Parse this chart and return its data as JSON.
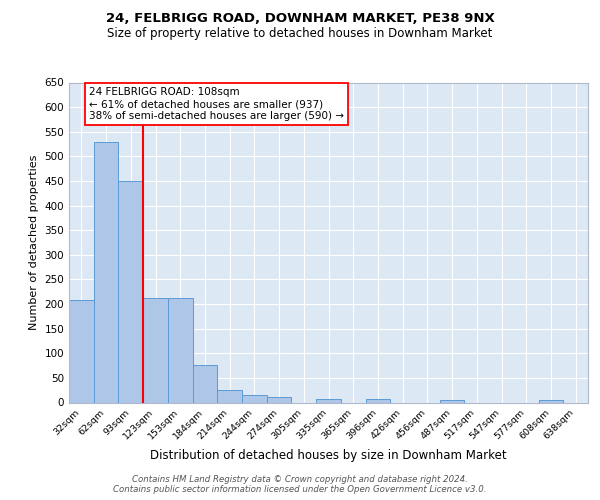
{
  "title1": "24, FELBRIGG ROAD, DOWNHAM MARKET, PE38 9NX",
  "title2": "Size of property relative to detached houses in Downham Market",
  "xlabel": "Distribution of detached houses by size in Downham Market",
  "ylabel": "Number of detached properties",
  "categories": [
    "32sqm",
    "62sqm",
    "93sqm",
    "123sqm",
    "153sqm",
    "184sqm",
    "214sqm",
    "244sqm",
    "274sqm",
    "305sqm",
    "335sqm",
    "365sqm",
    "396sqm",
    "426sqm",
    "456sqm",
    "487sqm",
    "517sqm",
    "547sqm",
    "577sqm",
    "608sqm",
    "638sqm"
  ],
  "values": [
    208,
    530,
    450,
    213,
    213,
    77,
    25,
    15,
    12,
    0,
    8,
    0,
    8,
    0,
    0,
    5,
    0,
    0,
    0,
    5,
    0
  ],
  "bar_color": "#aec6e8",
  "bar_edge_color": "#5b9bd5",
  "bg_color": "#dde8f5",
  "grid_color": "#ffffff",
  "vline_color": "red",
  "annotation_text": "24 FELBRIGG ROAD: 108sqm\n← 61% of detached houses are smaller (937)\n38% of semi-detached houses are larger (590) →",
  "annotation_box_color": "white",
  "annotation_box_edge": "red",
  "footer1": "Contains HM Land Registry data © Crown copyright and database right 2024.",
  "footer2": "Contains public sector information licensed under the Open Government Licence v3.0.",
  "ylim": [
    0,
    650
  ],
  "yticks": [
    0,
    50,
    100,
    150,
    200,
    250,
    300,
    350,
    400,
    450,
    500,
    550,
    600,
    650
  ]
}
